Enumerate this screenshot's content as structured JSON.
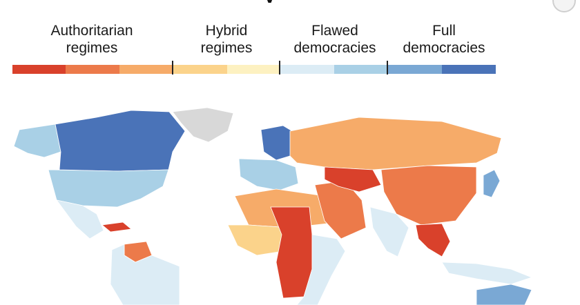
{
  "header": {
    "title_fragment": "y"
  },
  "legend": {
    "categories": [
      {
        "label_line1": "Authoritarian",
        "label_line2": "regimes",
        "colors": [
          "#d9412b",
          "#ec7a4a",
          "#f6ab69"
        ]
      },
      {
        "label_line1": "Hybrid",
        "label_line2": "regimes",
        "colors": [
          "#fbd38b",
          "#fdf1c1"
        ]
      },
      {
        "label_line1": "Flawed",
        "label_line2": "democracies",
        "colors": [
          "#dcecf5",
          "#a9d0e6"
        ]
      },
      {
        "label_line1": "Full",
        "label_line2": "democracies",
        "colors": [
          "#7aa8d4",
          "#4a73b8"
        ]
      }
    ]
  },
  "map": {
    "ocean_color": "#ffffff",
    "no_data_color": "#d8d8d8",
    "border_color": "#ffffff",
    "regions": [
      {
        "name": "Canada",
        "category": "full",
        "shade": 1
      },
      {
        "name": "Alaska",
        "category": "flawed",
        "shade": 1
      },
      {
        "name": "Greenland",
        "category": "nodata",
        "shade": 0
      },
      {
        "name": "United States",
        "category": "flawed",
        "shade": 1
      },
      {
        "name": "Mexico",
        "category": "flawed",
        "shade": 0
      },
      {
        "name": "Cuba",
        "category": "authoritarian",
        "shade": 0
      },
      {
        "name": "Venezuela",
        "category": "authoritarian",
        "shade": 1
      },
      {
        "name": "South America",
        "category": "flawed",
        "shade": 0
      },
      {
        "name": "Scandinavia",
        "category": "full",
        "shade": 1
      },
      {
        "name": "Western Europe",
        "category": "flawed",
        "shade": 1
      },
      {
        "name": "Russia",
        "category": "authoritarian",
        "shade": 2
      },
      {
        "name": "North Africa",
        "category": "authoritarian",
        "shade": 2
      },
      {
        "name": "Central Africa",
        "category": "authoritarian",
        "shade": 0
      },
      {
        "name": "West Africa",
        "category": "hybrid",
        "shade": 0
      },
      {
        "name": "Middle East",
        "category": "authoritarian",
        "shade": 1
      },
      {
        "name": "Central Asia",
        "category": "authoritarian",
        "shade": 0
      },
      {
        "name": "China",
        "category": "authoritarian",
        "shade": 1
      },
      {
        "name": "India",
        "category": "flawed",
        "shade": 0
      },
      {
        "name": "Southeast Asia",
        "category": "authoritarian",
        "shade": 0
      },
      {
        "name": "Japan",
        "category": "full",
        "shade": 0
      },
      {
        "name": "Indonesia",
        "category": "flawed",
        "shade": 0
      },
      {
        "name": "Australia",
        "category": "full",
        "shade": 0
      }
    ]
  }
}
